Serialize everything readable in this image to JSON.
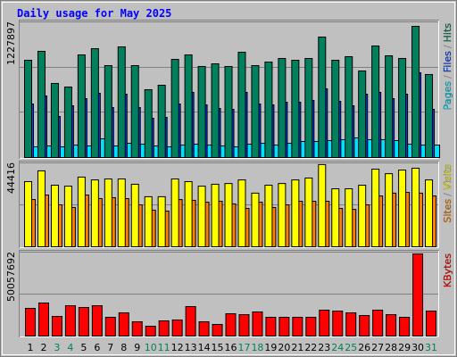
{
  "title": "Daily usage for May 2025",
  "separator": "/",
  "chart_data": [
    {
      "type": "bar",
      "ylim": [
        0,
        1227897
      ],
      "yticks": [
        1227897
      ],
      "grid_divisions": 3,
      "series": [
        {
          "name": "Pages",
          "color": "#00e0ff",
          "values": [
            96900,
            105000,
            96900,
            113100,
            105000,
            169600,
            105000,
            129200,
            121200,
            105000,
            96900,
            113100,
            121200,
            113100,
            105000,
            96900,
            121200,
            129200,
            113100,
            129200,
            145400,
            145400,
            153500,
            161600,
            177700,
            161600,
            161600,
            153500,
            121200,
            113100,
            113100
          ]
        },
        {
          "name": "Files",
          "color": "#0040ff",
          "values": [
            484700,
            557400,
            371600,
            468500,
            533100,
            581600,
            452400,
            573500,
            452400,
            355400,
            363500,
            484700,
            589700,
            476600,
            444300,
            436200,
            589700,
            484700,
            476600,
            500800,
            500800,
            517000,
            622000,
            508900,
            468500,
            573500,
            589700,
            533100,
            573500,
            767400,
            436200
          ]
        },
        {
          "name": "Hits",
          "color": "#00805c",
          "values": [
            880500,
            961300,
            670500,
            638200,
            929000,
            985500,
            832000,
            1001700,
            832000,
            613900,
            654300,
            888600,
            929000,
            824000,
            848200,
            824000,
            953200,
            832000,
            864300,
            896700,
            880500,
            896700,
            1090500,
            880500,
            912800,
            783600,
            1009800,
            920900,
            896700,
            1187500,
            751300
          ]
        }
      ]
    },
    {
      "type": "bar",
      "ylim": [
        0,
        44416
      ],
      "yticks": [
        44416
      ],
      "grid_divisions": 2,
      "series": [
        {
          "name": "Sites",
          "color": "#ff8000",
          "values": [
            25000,
            27400,
            22200,
            20800,
            27400,
            25500,
            26000,
            25500,
            22200,
            19400,
            18900,
            25000,
            24600,
            23600,
            24100,
            22700,
            20300,
            23600,
            20800,
            22200,
            24100,
            24100,
            24100,
            20300,
            19800,
            22200,
            26900,
            28400,
            28800,
            28400,
            26900
          ]
        },
        {
          "name": "Visits",
          "color": "#ffff00",
          "values": [
            34500,
            40200,
            32600,
            32100,
            36900,
            35400,
            35900,
            35900,
            33100,
            26500,
            26500,
            35900,
            34500,
            32100,
            33100,
            33500,
            35400,
            28400,
            32600,
            33500,
            35400,
            36400,
            43500,
            30700,
            30700,
            32600,
            41100,
            38700,
            40600,
            41600,
            35400
          ]
        }
      ]
    },
    {
      "type": "bar",
      "ylim": [
        0,
        50057692
      ],
      "yticks": [
        50057692
      ],
      "grid_divisions": 2,
      "categories": [
        "1",
        "2",
        "3",
        "4",
        "5",
        "6",
        "7",
        "8",
        "9",
        "10",
        "11",
        "12",
        "13",
        "14",
        "15",
        "16",
        "17",
        "18",
        "19",
        "20",
        "21",
        "22",
        "23",
        "24",
        "25",
        "26",
        "27",
        "28",
        "29",
        "30",
        "31"
      ],
      "category_colors": [
        "#000000",
        "#000000",
        "#00805c",
        "#00805c",
        "#000000",
        "#000000",
        "#000000",
        "#000000",
        "#000000",
        "#00805c",
        "#00805c",
        "#000000",
        "#000000",
        "#000000",
        "#000000",
        "#000000",
        "#00805c",
        "#00805c",
        "#000000",
        "#000000",
        "#000000",
        "#000000",
        "#000000",
        "#00805c",
        "#00805c",
        "#000000",
        "#000000",
        "#000000",
        "#000000",
        "#000000",
        "#00805c"
      ],
      "series": [
        {
          "name": "KBytes",
          "color": "#ff0000",
          "values": [
            16508000,
            19703600,
            11715600,
            18106000,
            17040900,
            18106000,
            11183100,
            13845800,
            8520500,
            5857800,
            9053000,
            9585500,
            17573500,
            8520500,
            6922900,
            13313200,
            12780700,
            14378300,
            11183100,
            11183100,
            11183100,
            11183100,
            15443300,
            14910800,
            13845800,
            12248200,
            15443300,
            12780700,
            11183100,
            48992700,
            14910800
          ]
        }
      ]
    }
  ]
}
